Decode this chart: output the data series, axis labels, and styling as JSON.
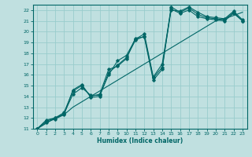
{
  "xlabel": "Humidex (Indice chaleur)",
  "bg_color": "#c0e0e0",
  "grid_color": "#99cccc",
  "line_color": "#006666",
  "xlim": [
    -0.5,
    23.5
  ],
  "ylim": [
    11,
    22.5
  ],
  "xticks": [
    0,
    1,
    2,
    3,
    4,
    5,
    6,
    7,
    8,
    9,
    10,
    11,
    12,
    13,
    14,
    15,
    16,
    17,
    18,
    19,
    20,
    21,
    22,
    23
  ],
  "yticks": [
    11,
    12,
    13,
    14,
    15,
    16,
    17,
    18,
    19,
    20,
    21,
    22
  ],
  "series": [
    {
      "x": [
        0,
        1,
        2,
        3,
        4,
        5,
        6,
        7,
        8,
        9,
        10,
        11,
        12,
        13,
        14,
        15,
        16,
        17,
        18,
        19,
        20,
        21,
        22,
        23
      ],
      "y": [
        11,
        11.5,
        12,
        12.3,
        13,
        13.5,
        14,
        14.5,
        15,
        15.5,
        16,
        16.5,
        17,
        17.5,
        18,
        18.5,
        19,
        19.5,
        20,
        20.5,
        21,
        21.2,
        21.5,
        21.8
      ],
      "marker": false
    },
    {
      "x": [
        0,
        1,
        2,
        3,
        4,
        5,
        6,
        7,
        8,
        9,
        10,
        11,
        12,
        13,
        14,
        15,
        16,
        17,
        18,
        19,
        20,
        21,
        22,
        23
      ],
      "y": [
        11,
        11.8,
        12,
        12.5,
        14.5,
        15.0,
        14.0,
        14.2,
        16.5,
        16.8,
        17.5,
        19.4,
        19.5,
        15.5,
        16.5,
        22.3,
        21.8,
        22.2,
        21.6,
        21.3,
        21.2,
        21.1,
        21.8,
        21.0
      ],
      "marker": true
    },
    {
      "x": [
        0,
        1,
        2,
        3,
        4,
        5,
        6,
        7,
        8,
        9,
        10,
        11,
        12,
        13,
        14,
        15,
        16,
        17,
        18,
        19,
        20,
        21,
        22,
        23
      ],
      "y": [
        11,
        11.7,
        12.0,
        12.4,
        14.2,
        14.8,
        14.1,
        14.1,
        16.0,
        17.3,
        17.8,
        19.3,
        19.8,
        15.8,
        17.0,
        22.1,
        21.7,
        22.0,
        21.4,
        21.2,
        21.1,
        21.0,
        21.7,
        21.0
      ],
      "marker": true
    },
    {
      "x": [
        0,
        1,
        2,
        3,
        4,
        5,
        6,
        7,
        8,
        9,
        10,
        11,
        12,
        13,
        14,
        15,
        16,
        17,
        18,
        19,
        20,
        21,
        22,
        23
      ],
      "y": [
        11,
        11.6,
        11.9,
        12.3,
        14.6,
        15.1,
        13.9,
        14.0,
        16.2,
        16.9,
        17.6,
        19.2,
        19.6,
        15.7,
        16.7,
        22.0,
        21.9,
        22.3,
        21.8,
        21.4,
        21.3,
        21.2,
        21.9,
        21.1
      ],
      "marker": true
    }
  ]
}
